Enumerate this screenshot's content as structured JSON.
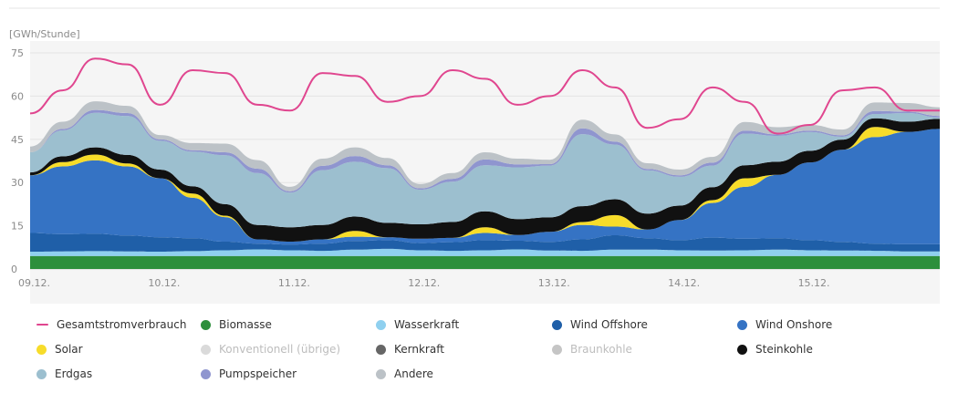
{
  "chart_data": {
    "type": "area",
    "ylabel": "[GWh/Stunde]",
    "ylim": [
      0,
      75
    ],
    "yticks": [
      0,
      15,
      30,
      45,
      60,
      75
    ],
    "xlim": [
      0,
      7
    ],
    "xticks": [
      {
        "x": 0,
        "label": "09.12."
      },
      {
        "x": 1,
        "label": "10.12."
      },
      {
        "x": 2,
        "label": "11.12."
      },
      {
        "x": 3,
        "label": "12.12."
      },
      {
        "x": 4,
        "label": "13.12."
      },
      {
        "x": 5,
        "label": "14.12."
      },
      {
        "x": 6,
        "label": "15.12."
      }
    ],
    "grid": true,
    "legend_position": "bottom",
    "stack_order": [
      "Biomasse",
      "Wasserkraft",
      "Wind Offshore",
      "Wind Onshore",
      "Solar",
      "Steinkohle",
      "Erdgas",
      "Pumpspeicher",
      "Andere"
    ],
    "x": [
      0.0,
      0.25,
      0.5,
      0.75,
      1.0,
      1.25,
      1.5,
      1.75,
      2.0,
      2.25,
      2.5,
      2.75,
      3.0,
      3.25,
      3.5,
      3.75,
      4.0,
      4.25,
      4.5,
      4.75,
      5.0,
      5.25,
      5.5,
      5.75,
      6.0,
      6.25,
      6.5,
      6.75,
      7.0
    ],
    "series": [
      {
        "name": "Biomasse",
        "color": "#2d8f3c",
        "values": [
          4.5,
          4.5,
          4.5,
          4.5,
          4.5,
          4.5,
          4.5,
          4.5,
          4.5,
          4.5,
          4.5,
          4.5,
          4.5,
          4.5,
          4.5,
          4.5,
          4.5,
          4.5,
          4.5,
          4.5,
          4.5,
          4.5,
          4.5,
          4.5,
          4.5,
          4.5,
          4.5,
          4.5,
          4.5
        ]
      },
      {
        "name": "Wasserkraft",
        "color": "#8fd0ef",
        "values": [
          1.5,
          1.6,
          1.7,
          1.6,
          1.5,
          1.7,
          2.0,
          2.3,
          2.0,
          1.8,
          2.2,
          2.5,
          2.0,
          1.8,
          2.0,
          2.3,
          1.9,
          1.8,
          2.2,
          2.2,
          2.0,
          1.9,
          2.0,
          2.2,
          2.0,
          1.9,
          1.8,
          1.6,
          1.6
        ]
      },
      {
        "name": "Wind Offshore",
        "color": "#1f5fa8",
        "values": [
          6.5,
          6.0,
          6.0,
          5.5,
          5.0,
          4.5,
          3.0,
          2.0,
          2.0,
          2.5,
          3.0,
          3.0,
          2.5,
          3.0,
          3.5,
          3.0,
          3.0,
          4.0,
          5.0,
          4.0,
          3.5,
          4.5,
          4.0,
          4.0,
          3.5,
          3.0,
          2.5,
          2.5,
          2.5
        ]
      },
      {
        "name": "Wind Onshore",
        "color": "#3573c4",
        "values": [
          20.0,
          23.5,
          25.5,
          24.0,
          20.5,
          14.0,
          8.5,
          1.5,
          1.0,
          1.5,
          1.5,
          1.0,
          1.5,
          1.5,
          2.5,
          2.0,
          3.5,
          5.0,
          3.0,
          3.0,
          7.0,
          12.0,
          18.0,
          22.0,
          27.0,
          32.0,
          37.0,
          39.0,
          40.0
        ]
      },
      {
        "name": "Solar",
        "color": "#f7dc2a",
        "values": [
          0.0,
          1.5,
          2.0,
          1.0,
          0.0,
          1.5,
          0.5,
          0.0,
          0.0,
          0.0,
          2.0,
          0.0,
          0.0,
          0.0,
          2.0,
          0.0,
          0.0,
          1.0,
          4.0,
          0.0,
          0.0,
          1.0,
          3.0,
          0.0,
          0.0,
          0.0,
          3.5,
          0.0,
          0.0
        ]
      },
      {
        "name": "Steinkohle",
        "color": "#111111",
        "values": [
          1.0,
          2.0,
          2.5,
          3.0,
          3.0,
          2.5,
          4.0,
          5.0,
          5.0,
          5.0,
          5.0,
          5.0,
          5.0,
          5.5,
          5.5,
          5.5,
          5.0,
          5.5,
          5.5,
          5.5,
          5.0,
          4.5,
          4.5,
          4.5,
          4.0,
          3.5,
          3.0,
          3.5,
          3.5
        ]
      },
      {
        "name": "Erdgas",
        "color": "#9cbfcf",
        "values": [
          7.0,
          9.0,
          12.0,
          13.5,
          10.0,
          12.0,
          17.0,
          18.0,
          12.0,
          19.0,
          19.0,
          19.0,
          12.0,
          14.0,
          16.0,
          18.0,
          18.0,
          25.0,
          19.0,
          15.0,
          10.0,
          7.5,
          11.0,
          9.0,
          6.5,
          1.0,
          1.5,
          3.0,
          0.5
        ]
      },
      {
        "name": "Pumpspeicher",
        "color": "#8f95cf",
        "values": [
          0.0,
          0.5,
          1.0,
          1.0,
          0.5,
          0.5,
          1.0,
          1.5,
          0.5,
          1.5,
          2.0,
          1.0,
          0.5,
          1.0,
          2.0,
          1.0,
          0.5,
          2.0,
          1.0,
          0.5,
          0.5,
          1.0,
          1.0,
          0.5,
          0.5,
          0.5,
          1.0,
          0.5,
          0.5
        ]
      },
      {
        "name": "Andere",
        "color": "#bcc2c7",
        "values": [
          2.0,
          2.5,
          3.0,
          2.5,
          1.5,
          2.5,
          3.0,
          3.0,
          1.5,
          2.5,
          3.0,
          2.5,
          1.5,
          2.0,
          2.5,
          2.0,
          1.5,
          3.0,
          2.5,
          2.0,
          2.0,
          2.0,
          3.0,
          2.5,
          2.0,
          2.0,
          3.0,
          3.0,
          3.0
        ]
      }
    ],
    "overlay": {
      "name": "Gesamtstromverbrauch",
      "color": "#e0468f",
      "values": [
        54,
        62,
        73,
        71,
        57,
        69,
        68,
        57,
        55,
        68,
        67,
        58,
        60,
        69,
        66,
        57,
        60,
        69,
        63,
        49,
        52,
        63,
        58,
        47,
        50,
        62,
        63,
        55,
        55
      ]
    },
    "legend": [
      {
        "label": "Gesamtstromverbrauch",
        "color": "#e0468f",
        "shape": "line",
        "active": true
      },
      {
        "label": "Biomasse",
        "color": "#2d8f3c",
        "shape": "dot",
        "active": true
      },
      {
        "label": "Wasserkraft",
        "color": "#8fd0ef",
        "shape": "dot",
        "active": true
      },
      {
        "label": "Wind Offshore",
        "color": "#1f5fa8",
        "shape": "dot",
        "active": true
      },
      {
        "label": "Wind Onshore",
        "color": "#3573c4",
        "shape": "dot",
        "active": true
      },
      {
        "label": "Solar",
        "color": "#f7dc2a",
        "shape": "dot",
        "active": true
      },
      {
        "label": "Konventionell (übrige)",
        "color": "#dadada",
        "shape": "dot",
        "active": false
      },
      {
        "label": "Kernkraft",
        "color": "#666666",
        "shape": "dot",
        "active": true
      },
      {
        "label": "Braunkohle",
        "color": "#c5c5c5",
        "shape": "dot",
        "active": false
      },
      {
        "label": "Steinkohle",
        "color": "#111111",
        "shape": "dot",
        "active": true
      },
      {
        "label": "Erdgas",
        "color": "#9cbfcf",
        "shape": "dot",
        "active": true
      },
      {
        "label": "Pumpspeicher",
        "color": "#8f95cf",
        "shape": "dot",
        "active": true
      },
      {
        "label": "Andere",
        "color": "#bcc2c7",
        "shape": "dot",
        "active": true
      }
    ]
  }
}
